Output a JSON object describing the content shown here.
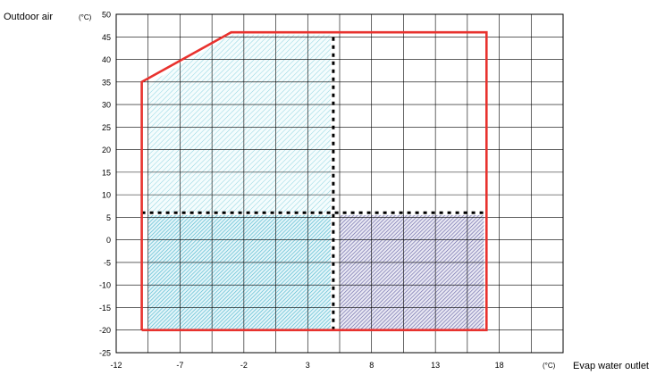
{
  "chart_data": {
    "type": "area",
    "ylabel": "Outdoor air",
    "ylabel_unit": "(°C)",
    "xlabel": "Evap water outlet",
    "xlabel_unit": "(°C)",
    "xlim": [
      -12,
      23
    ],
    "ylim": [
      -25,
      50
    ],
    "x_ticks": [
      -12,
      -7,
      -2,
      3,
      8,
      13,
      18
    ],
    "y_ticks": [
      50,
      45,
      40,
      35,
      30,
      25,
      20,
      15,
      10,
      5,
      0,
      -5,
      -10,
      -15,
      -20,
      -25
    ],
    "grid": true,
    "operating_envelope": {
      "color": "#e8322e",
      "points": [
        [
          -10,
          -20
        ],
        [
          -10,
          35
        ],
        [
          -3,
          46
        ],
        [
          17,
          46
        ],
        [
          17,
          -20
        ],
        [
          -10,
          -20
        ]
      ]
    },
    "boundaries": [
      {
        "style": "dotted",
        "color": "#000000",
        "points": [
          [
            5,
            -20
          ],
          [
            5,
            46
          ]
        ]
      },
      {
        "style": "dotted",
        "color": "#000000",
        "points": [
          [
            -10,
            6
          ],
          [
            17,
            6
          ]
        ]
      }
    ],
    "regions": [
      {
        "fill": "light-cyan-hatch",
        "color": "#8fd4e0",
        "polygon": [
          [
            -9.5,
            6
          ],
          [
            -9.5,
            34.5
          ],
          [
            -3,
            45.5
          ],
          [
            4.8,
            45.5
          ],
          [
            4.8,
            6
          ]
        ]
      },
      {
        "fill": "cyan-hatch",
        "color": "#4fb8cf",
        "polygon": [
          [
            -9.5,
            -19.8
          ],
          [
            -9.5,
            5.5
          ],
          [
            4.8,
            5.5
          ],
          [
            4.8,
            -19.8
          ]
        ]
      },
      {
        "fill": "purple-hatch",
        "color": "#6a68a8",
        "polygon": [
          [
            5.5,
            -19.8
          ],
          [
            5.5,
            5.5
          ],
          [
            16.8,
            5.5
          ],
          [
            16.8,
            -19.8
          ]
        ]
      }
    ]
  }
}
